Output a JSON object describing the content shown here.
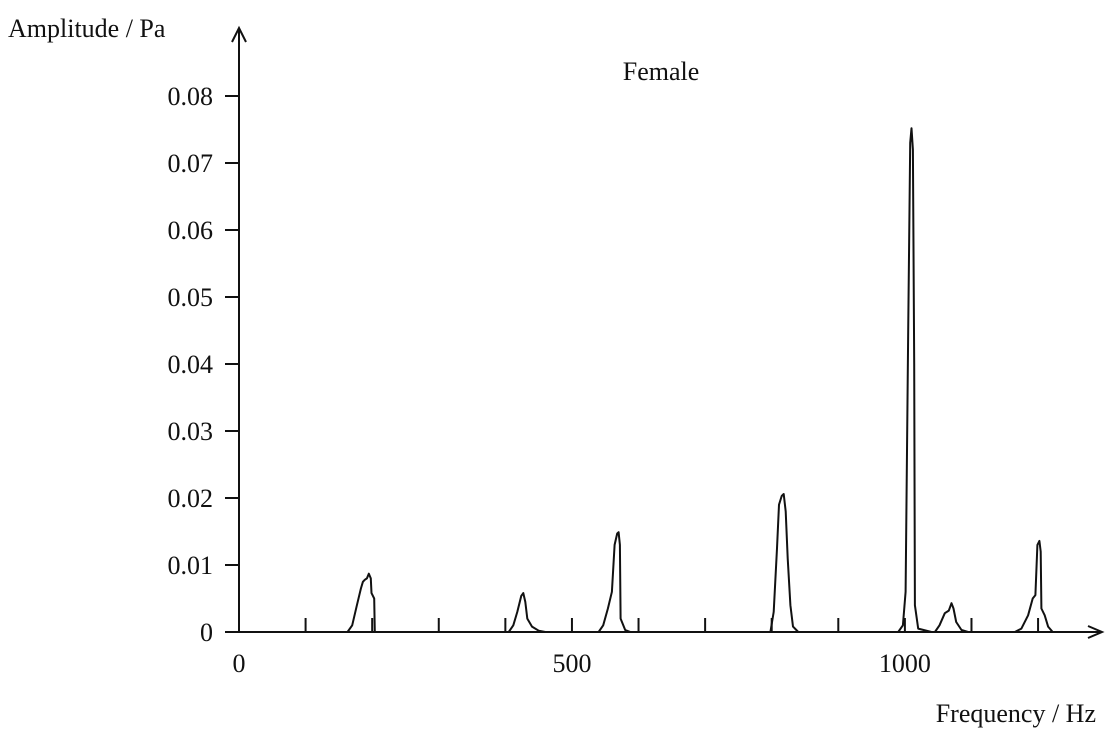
{
  "chart_data": {
    "type": "line",
    "title": "Female",
    "xlabel": "Frequency / Hz",
    "ylabel": "Amplitude / Pa",
    "xlim": [
      0,
      1280
    ],
    "ylim": [
      0,
      0.08
    ],
    "x_ticks": [
      0,
      500,
      1000
    ],
    "x_tick_labels": [
      "0",
      "500",
      "1000"
    ],
    "x_minor_step": 100,
    "y_ticks": [
      0,
      0.01,
      0.02,
      0.03,
      0.04,
      0.05,
      0.06,
      0.07,
      0.08
    ],
    "y_tick_labels": [
      "0",
      "0.01",
      "0.02",
      "0.03",
      "0.04",
      "0.05",
      "0.06",
      "0.07",
      "0.08"
    ],
    "grid": false,
    "series": [
      {
        "color": "#111111",
        "peaks": [
          {
            "frequency": 195,
            "amplitude": 0.0087
          },
          {
            "frequency": 427,
            "amplitude": 0.0058
          },
          {
            "frequency": 570,
            "amplitude": 0.0149
          },
          {
            "frequency": 818,
            "amplitude": 0.0206
          },
          {
            "frequency": 1010,
            "amplitude": 0.0752
          },
          {
            "frequency": 1070,
            "amplitude": 0.0043
          },
          {
            "frequency": 1202,
            "amplitude": 0.0136
          }
        ],
        "points": [
          [
            0,
            0
          ],
          [
            163,
            0
          ],
          [
            170,
            0.001
          ],
          [
            177,
            0.004
          ],
          [
            183,
            0.0065
          ],
          [
            186,
            0.0075
          ],
          [
            189,
            0.0078
          ],
          [
            192,
            0.008
          ],
          [
            195,
            0.0087
          ],
          [
            198,
            0.008
          ],
          [
            199,
            0.0058
          ],
          [
            203,
            0.005
          ],
          [
            204,
            0
          ],
          [
            405,
            0
          ],
          [
            412,
            0.001
          ],
          [
            418,
            0.003
          ],
          [
            424,
            0.0054
          ],
          [
            427,
            0.0058
          ],
          [
            430,
            0.0045
          ],
          [
            433,
            0.002
          ],
          [
            440,
            0.0008
          ],
          [
            450,
            0.0002
          ],
          [
            460,
            0
          ],
          [
            540,
            0
          ],
          [
            547,
            0.001
          ],
          [
            554,
            0.0035
          ],
          [
            560,
            0.006
          ],
          [
            564,
            0.013
          ],
          [
            568,
            0.0147
          ],
          [
            570,
            0.0149
          ],
          [
            572,
            0.013
          ],
          [
            573,
            0.002
          ],
          [
            580,
            0.0003
          ],
          [
            588,
            0
          ],
          [
            798,
            0
          ],
          [
            803,
            0.003
          ],
          [
            808,
            0.0125
          ],
          [
            811,
            0.019
          ],
          [
            815,
            0.0203
          ],
          [
            818,
            0.0206
          ],
          [
            821,
            0.018
          ],
          [
            824,
            0.011
          ],
          [
            828,
            0.004
          ],
          [
            832,
            0.0008
          ],
          [
            840,
            0
          ],
          [
            990,
            0
          ],
          [
            997,
            0.001
          ],
          [
            1001,
            0.006
          ],
          [
            1005,
            0.045
          ],
          [
            1008,
            0.073
          ],
          [
            1010,
            0.0752
          ],
          [
            1012,
            0.072
          ],
          [
            1014,
            0.04
          ],
          [
            1015,
            0.004
          ],
          [
            1020,
            0.0005
          ],
          [
            1040,
            0
          ],
          [
            1045,
            0
          ],
          [
            1052,
            0.001
          ],
          [
            1060,
            0.0028
          ],
          [
            1066,
            0.0032
          ],
          [
            1070,
            0.0043
          ],
          [
            1073,
            0.0035
          ],
          [
            1077,
            0.0015
          ],
          [
            1085,
            0.0003
          ],
          [
            1095,
            0
          ],
          [
            1165,
            0
          ],
          [
            1175,
            0.0005
          ],
          [
            1185,
            0.0025
          ],
          [
            1192,
            0.005
          ],
          [
            1196,
            0.0055
          ],
          [
            1199,
            0.013
          ],
          [
            1202,
            0.0136
          ],
          [
            1204,
            0.012
          ],
          [
            1205,
            0.0035
          ],
          [
            1210,
            0.0025
          ],
          [
            1215,
            0.0008
          ],
          [
            1222,
            0
          ],
          [
            1270,
            0
          ]
        ]
      }
    ]
  }
}
